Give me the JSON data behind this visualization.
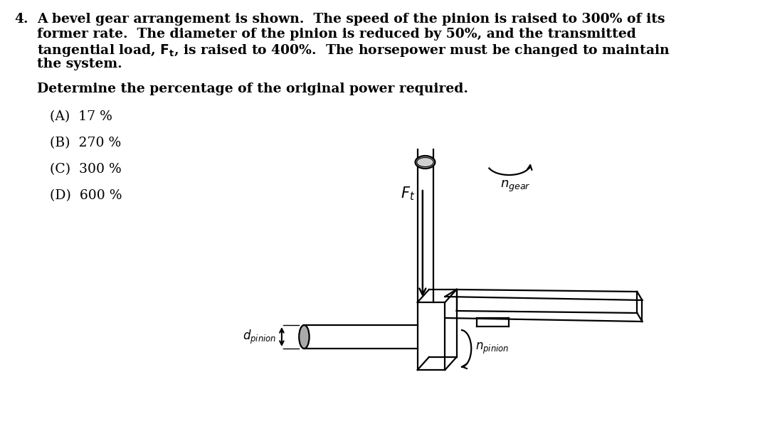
{
  "background_color": "#ffffff",
  "text_color": "#000000",
  "line1": "A bevel gear arrangement is shown.  The speed of the pinion is raised to 300% of its",
  "line2": "former rate.  The diameter of the pinion is reduced by 50%, and the transmitted",
  "line3": "tangential load, $\\mathbf{\\mathit{F}_t}$, is raised to 400%.  The horsepower must be changed to maintain",
  "line4": "the system.",
  "subheading": "Determine the percentage of the original power required.",
  "choices": [
    "(A)  17 %",
    "(B)  270 %",
    "(C)  300 %",
    "(D)  600 %"
  ],
  "font_size_main": 13.5,
  "font_size_choices": 13.5
}
